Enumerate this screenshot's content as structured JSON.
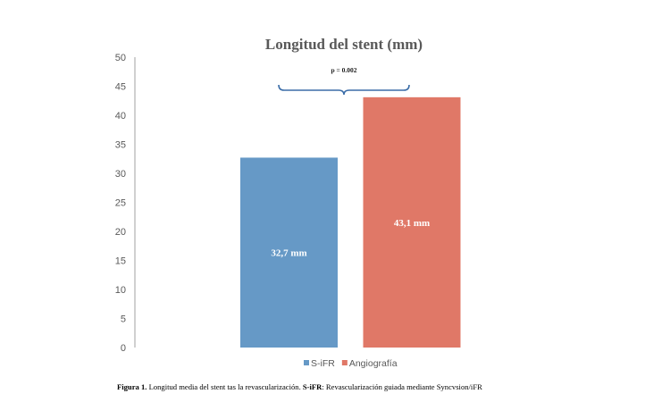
{
  "chart_data": {
    "type": "bar",
    "title": "Longitud del stent (mm)",
    "categories": [
      "S-iFR",
      "Angiografía"
    ],
    "values": [
      32.7,
      43.1
    ],
    "value_labels": [
      "32,7 mm",
      "43,1 mm"
    ],
    "colors": [
      "#6699C6",
      "#E07867"
    ],
    "yticks": [
      "0",
      "5",
      "10",
      "15",
      "20",
      "25",
      "30",
      "35",
      "40",
      "45",
      "50"
    ],
    "ylim": [
      0,
      50
    ],
    "grid": false,
    "legend": "bottom",
    "annotation": "p = 0.002",
    "annotation_color": "#3B6DA8"
  },
  "caption": {
    "figure_label": "Figura 1.",
    "text": " Longitud media del stent tas la revascularización.  ",
    "abbr": "S-iFR",
    "abbr_text": ": Revascularización guiada mediante Syncvsion/iFR"
  }
}
